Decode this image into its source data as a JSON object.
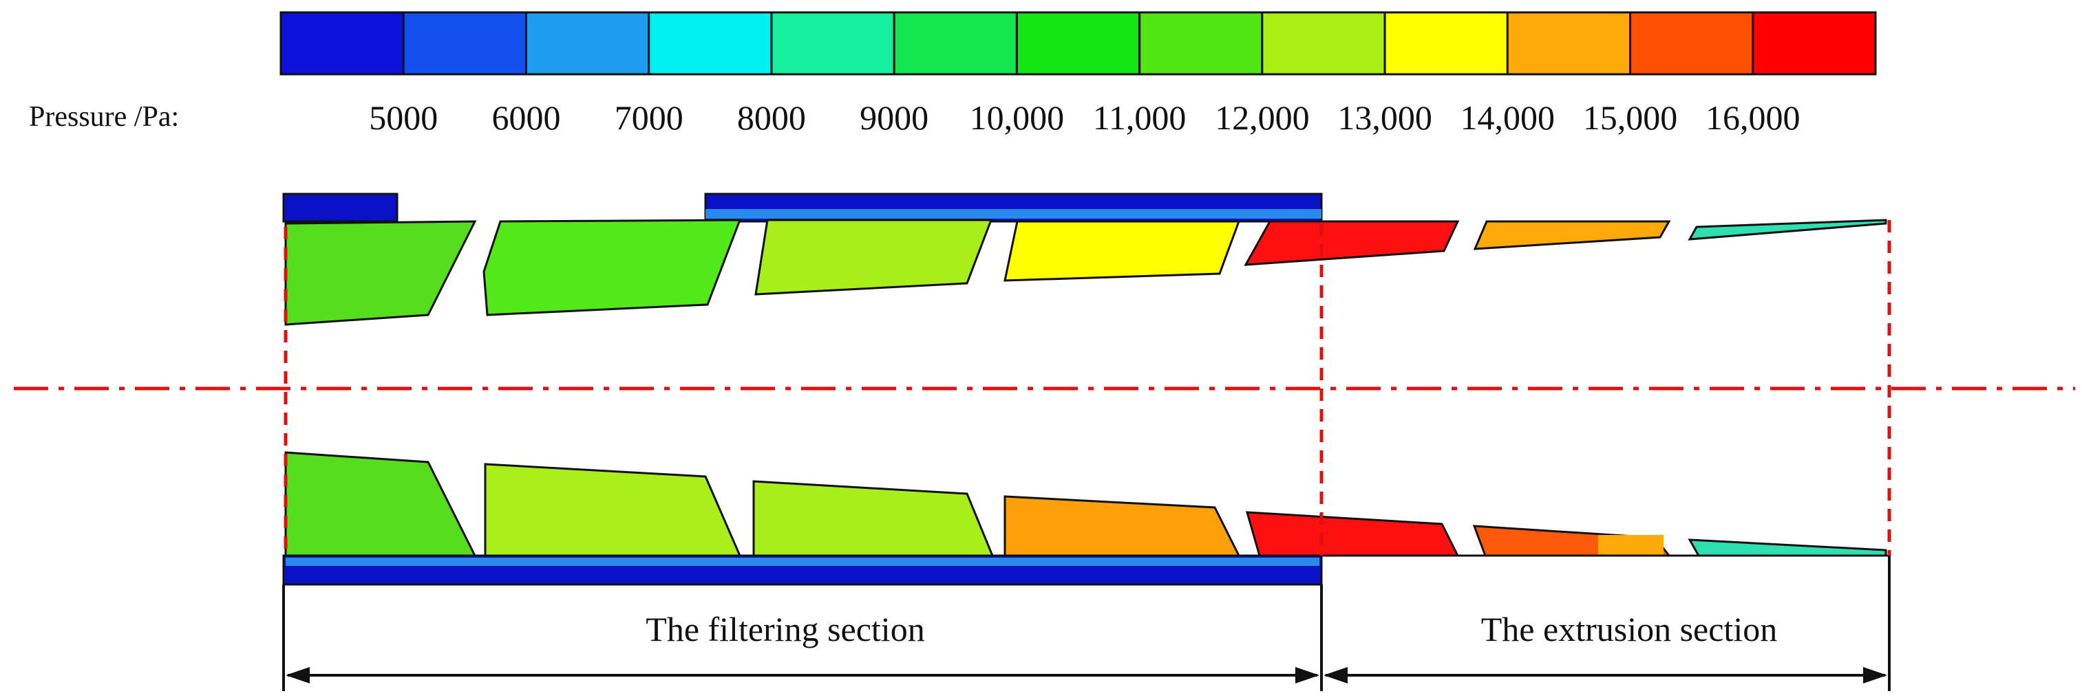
{
  "legend": {
    "title": "Pressure /Pa:",
    "colors": [
      "#0a12dc",
      "#1450f0",
      "#1e9cf0",
      "#00f0f0",
      "#14f0a0",
      "#14e650",
      "#14e614",
      "#50e614",
      "#aaf014",
      "#ffff00",
      "#ffaa0a",
      "#ff5000",
      "#ff0000"
    ],
    "ticks": [
      "5000",
      "6000",
      "7000",
      "8000",
      "9000",
      "10,000",
      "11,000",
      "12,000",
      "13,000",
      "14,000",
      "15,000",
      "16,000"
    ]
  },
  "sections": {
    "filtering": "The filtering section",
    "extrusion": "The extrusion section"
  },
  "colors": {
    "guide_line": "#e01010",
    "outline": "#111111",
    "wall_blue": "#0a12c8",
    "top_segments": [
      "#55dd1e",
      "#52e81a",
      "#a8ee1a",
      "#ffff00",
      "#ff1010",
      "#ffaa0a",
      "#2ee0b0"
    ],
    "bottom_segments": [
      "#55dd1e",
      "#aaee1a",
      "#a8ee1a",
      "#ffa00a",
      "#ff1010",
      "#ff5a0a",
      "#2ee0b0"
    ]
  }
}
